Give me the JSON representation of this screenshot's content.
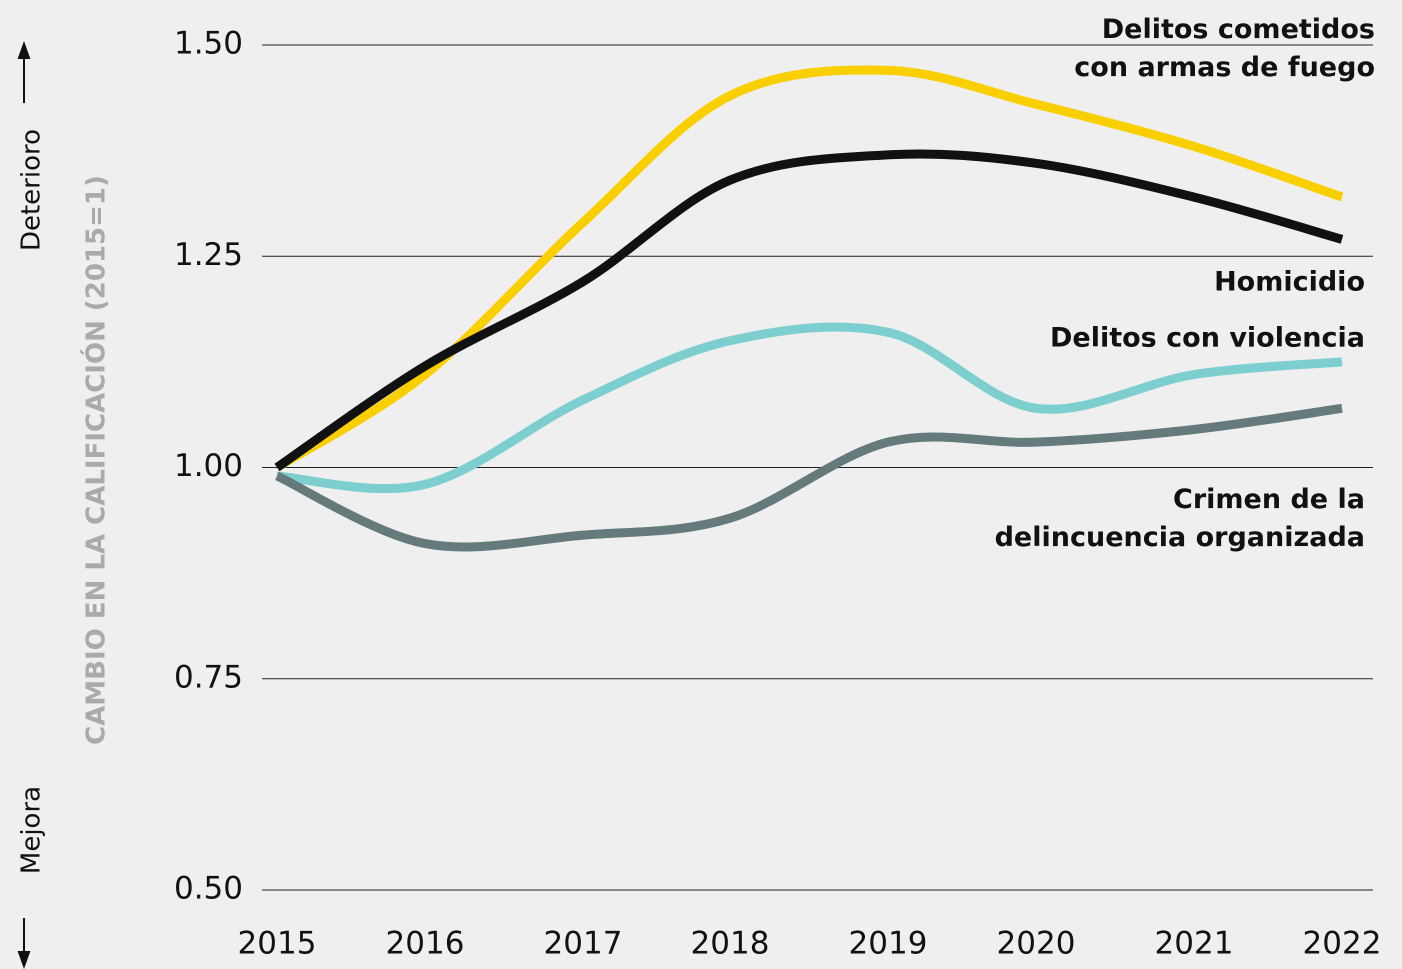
{
  "chart_data": {
    "type": "line",
    "y_label": "CAMBIO EN LA CALIFICACIÓN (2015=1)",
    "annotations": [
      "Deterioro",
      "Mejora"
    ],
    "categories": [
      "2015",
      "2016",
      "2017",
      "2018",
      "2019",
      "2020",
      "2021",
      "2022"
    ],
    "series": [
      {
        "name": "Delitos cometidos con armas de fuego",
        "color": "#f9cf00",
        "values": [
          1.0,
          1.11,
          1.29,
          1.44,
          1.47,
          1.43,
          1.38,
          1.32
        ]
      },
      {
        "name": "Homicidio",
        "color": "#111111",
        "values": [
          1.0,
          1.12,
          1.22,
          1.34,
          1.37,
          1.36,
          1.32,
          1.27
        ]
      },
      {
        "name": "Delitos con violencia",
        "color": "#7dcfcf",
        "values": [
          0.99,
          0.98,
          1.08,
          1.15,
          1.16,
          1.07,
          1.11,
          1.125
        ]
      },
      {
        "name": "Crimen de la delincuencia organizada",
        "color": "#657a7b",
        "values": [
          0.99,
          0.91,
          0.92,
          0.94,
          1.03,
          1.03,
          1.045,
          1.07
        ]
      }
    ],
    "ylim": [
      0.5,
      1.5
    ],
    "yticks": [
      {
        "value": 0.5,
        "label": "0.50"
      },
      {
        "value": 0.75,
        "label": "0.75"
      },
      {
        "value": 1.0,
        "label": "1.00"
      },
      {
        "value": 1.25,
        "label": "1.25"
      },
      {
        "value": 1.5,
        "label": "1.50"
      }
    ],
    "grid": true
  }
}
